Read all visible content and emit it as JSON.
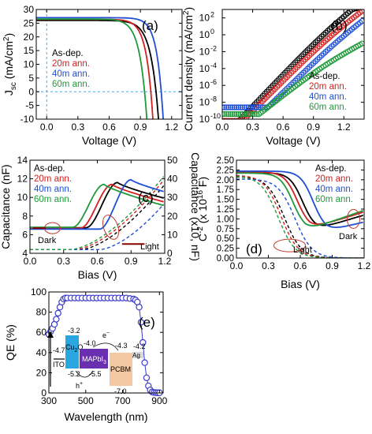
{
  "colors": {
    "asdep": "#000000",
    "ann20": "#d42020",
    "ann40": "#1f4fd6",
    "ann60": "#1f9a3a",
    "qe": "#3b3bcc",
    "ito": "#e8e8e8",
    "cu2o": "#2aa7e0",
    "mapbi": "#6a2fb0",
    "pcbm": "#f3c8a3",
    "ag": "#d8d8d8"
  },
  "legend": [
    "As-dep.",
    "20m ann.",
    "40m ann.",
    "60m ann."
  ],
  "chart_data": [
    {
      "id": "a",
      "type": "line",
      "panel_label": "(a)",
      "xlabel": "Voltage (V)",
      "ylabel": "J",
      "ylabel_sub": "sc",
      "ylabel_tail": " (mA/cm",
      "ylabel_sup": "2",
      "ylabel_end": ")",
      "xlim": [
        -0.1,
        1.3
      ],
      "ylim": [
        -10,
        30
      ],
      "xticks": [
        "0.0",
        "0.3",
        "0.6",
        "0.9",
        "1.2"
      ],
      "xtick_values": [
        0,
        0.3,
        0.6,
        0.9,
        1.2
      ],
      "yticks": [
        "-10",
        "-5",
        "0",
        "5",
        "10",
        "15",
        "20",
        "25",
        "30"
      ],
      "ytick_values": [
        -10,
        -5,
        0,
        5,
        10,
        15,
        20,
        25,
        30
      ],
      "series": [
        {
          "name": "As-dep.",
          "jsc": 26.0,
          "voc": 1.05,
          "n": 2.8
        },
        {
          "name": "20m ann.",
          "jsc": 26.4,
          "voc": 1.0,
          "n": 2.4
        },
        {
          "name": "40m ann.",
          "jsc": 27.0,
          "voc": 1.1,
          "n": 2.3
        },
        {
          "name": "60m ann.",
          "jsc": 26.5,
          "voc": 0.94,
          "n": 2.6
        }
      ]
    },
    {
      "id": "b",
      "type": "scatter",
      "panel_label": "(b)",
      "xlabel": "Voltage (V)",
      "ylabel": "Current density (mA/cm",
      "ylabel_sup": "2",
      "ylabel_end": ")",
      "xlim": [
        0,
        1.4
      ],
      "ylim_log10": [
        -10,
        3
      ],
      "xticks": [
        "0.0",
        "0.3",
        "0.6",
        "0.9",
        "1.2"
      ],
      "xtick_values": [
        0,
        0.3,
        0.6,
        0.9,
        1.2
      ],
      "yticks": [
        "10",
        "10",
        "10",
        "10",
        "10",
        "10",
        "10"
      ],
      "ytick_exponents": [
        "-10",
        "-8",
        "-6",
        "-4",
        "-2",
        "0",
        "2"
      ],
      "ytick_values": [
        -10,
        -8,
        -6,
        -4,
        -2,
        0,
        2
      ],
      "series": [
        {
          "name": "As-dep.",
          "floor": -10.6,
          "v0": 0.18,
          "slope": 12.6,
          "sat": 2.4,
          "satv": 1.03
        },
        {
          "name": "20m ann.",
          "floor": -10.2,
          "v0": 0.22,
          "slope": 12.0,
          "sat": 2.2,
          "satv": 1.05
        },
        {
          "name": "40m ann.",
          "floor": -8.6,
          "v0": 0.33,
          "slope": 11.8,
          "sat": 2.8,
          "satv": 1.18
        },
        {
          "name": "60m ann.",
          "floor": -9.4,
          "v0": 0.3,
          "slope": 9.5,
          "sat": 1.0,
          "satv": 0.98
        }
      ]
    },
    {
      "id": "c",
      "type": "line",
      "panel_label": "(c)",
      "xlabel": "Bias (V)",
      "ylabel": "Capacitance (nF)",
      "ylabel_right": "Capacitance (x10, nF)",
      "xlim": [
        0,
        1.2
      ],
      "ylim": [
        4,
        14
      ],
      "ylim_right": [
        0,
        50
      ],
      "xticks": [
        "0.0",
        "0.3",
        "0.6",
        "0.9",
        "1.2"
      ],
      "xtick_values": [
        0,
        0.3,
        0.6,
        0.9,
        1.2
      ],
      "yticks": [
        "4",
        "6",
        "8",
        "10",
        "12",
        "14"
      ],
      "ytick_values": [
        4,
        6,
        8,
        10,
        12,
        14
      ],
      "yticks_right": [
        "0",
        "10",
        "20",
        "30",
        "40",
        "50"
      ],
      "ytick_values_right": [
        0,
        10,
        20,
        30,
        40,
        50
      ],
      "annotations": [
        "Dark",
        "Light"
      ],
      "dark_series": [
        {
          "name": "As-dep.",
          "base": 6.75,
          "peak_v": 0.78,
          "peak_c": 11.6,
          "end_c": 9.9
        },
        {
          "name": "20m ann.",
          "base": 6.7,
          "peak_v": 0.73,
          "peak_c": 11.4,
          "end_c": 9.5
        },
        {
          "name": "40m ann.",
          "base": 6.6,
          "peak_v": 0.9,
          "peak_c": 11.9,
          "end_c": 10.6
        },
        {
          "name": "60m ann.",
          "base": 6.8,
          "peak_v": 0.66,
          "peak_c": 11.4,
          "end_c": 9.1
        }
      ],
      "light_series": [
        {
          "name": "As-dep.",
          "start": 0.45,
          "end_right": 35
        },
        {
          "name": "20m ann.",
          "start": 0.4,
          "end_right": 38
        },
        {
          "name": "40m ann.",
          "start": 0.62,
          "end_right": 25
        },
        {
          "name": "60m ann.",
          "start": 0.36,
          "end_right": 40
        }
      ]
    },
    {
      "id": "d",
      "type": "line",
      "panel_label": "(d)",
      "xlabel": "Bias (V)",
      "ylabel": "C",
      "ylabel_sup": "-2",
      "ylabel_tail": " (x 10",
      "ylabel_sup2": "16",
      "ylabel_end": " F)",
      "xlim": [
        0,
        1.2
      ],
      "ylim": [
        0,
        2.5
      ],
      "xticks": [
        "0.0",
        "0.3",
        "0.6",
        "0.9",
        "1.2"
      ],
      "xtick_values": [
        0,
        0.3,
        0.6,
        0.9,
        1.2
      ],
      "yticks": [
        "0.00",
        "0.25",
        "0.50",
        "0.75",
        "1.00",
        "1.25",
        "1.50",
        "1.75",
        "2.00",
        "2.25",
        "2.50"
      ],
      "ytick_values": [
        0,
        0.25,
        0.5,
        0.75,
        1.0,
        1.25,
        1.5,
        1.75,
        2.0,
        2.25,
        2.5
      ],
      "annotations": [
        "Dark",
        "Light"
      ],
      "dark_series": [
        {
          "name": "As-dep.",
          "top": 2.18,
          "mid": 0.62,
          "w": 0.06,
          "min": 0.72,
          "end": 1.1
        },
        {
          "name": "20m ann.",
          "top": 2.2,
          "mid": 0.57,
          "w": 0.06,
          "min": 0.75,
          "end": 1.18
        },
        {
          "name": "40m ann.",
          "top": 2.22,
          "mid": 0.72,
          "w": 0.06,
          "min": 0.68,
          "end": 0.92
        },
        {
          "name": "60m ann.",
          "top": 2.17,
          "mid": 0.53,
          "w": 0.06,
          "min": 0.7,
          "end": 1.22
        }
      ],
      "light_series": [
        {
          "name": "As-dep.",
          "top": 2.08,
          "mid": 0.45,
          "w": 0.08
        },
        {
          "name": "20m ann.",
          "top": 2.12,
          "mid": 0.42,
          "w": 0.08
        },
        {
          "name": "40m ann.",
          "top": 2.02,
          "mid": 0.55,
          "w": 0.08
        },
        {
          "name": "60m ann.",
          "top": 2.1,
          "mid": 0.39,
          "w": 0.08
        }
      ]
    },
    {
      "id": "e",
      "type": "line",
      "panel_label": "(e)",
      "xlabel": "Wavelength (nm)",
      "ylabel": "QE (%)",
      "xlim": [
        300,
        920
      ],
      "ylim": [
        0,
        100
      ],
      "xticks": [
        "300",
        "500",
        "700",
        "900"
      ],
      "xtick_values": [
        300,
        500,
        700,
        900
      ],
      "yticks": [
        "0",
        "20",
        "40",
        "60",
        "80",
        "100"
      ],
      "ytick_values": [
        0,
        20,
        40,
        60,
        80,
        100
      ],
      "x": [
        300,
        310,
        320,
        330,
        340,
        350,
        360,
        370,
        380,
        390,
        400,
        420,
        440,
        460,
        480,
        500,
        520,
        540,
        560,
        580,
        600,
        620,
        640,
        660,
        680,
        700,
        720,
        740,
        760,
        770,
        780,
        790,
        800,
        810,
        820,
        830,
        840,
        850,
        860,
        870,
        880,
        890,
        900
      ],
      "y": [
        58,
        61,
        64,
        68,
        73,
        79,
        85,
        90,
        93,
        94,
        94,
        94,
        94,
        94,
        94,
        94,
        94,
        94,
        94,
        94,
        94,
        94,
        94,
        94,
        94,
        94,
        94,
        93.5,
        93,
        92,
        90,
        85,
        70,
        50,
        30,
        15,
        7,
        3,
        1,
        0.5,
        0.3,
        0.2,
        0.2
      ],
      "inset": {
        "layers": [
          {
            "name": "ITO",
            "level": "-4.7"
          },
          {
            "name": "Cu",
            "sub": "2",
            "tail": "O",
            "top": "-3.2",
            "bottom": "-5.2"
          },
          {
            "name": "MAPbI",
            "sub": "3",
            "top": "-4.0",
            "bottom": "-5.5"
          },
          {
            "name": "PCBM",
            "top": "-4.3",
            "bottom": "-7.0"
          },
          {
            "name": "Ag",
            "level": "-4.2"
          }
        ],
        "carriers": [
          "e",
          "h"
        ],
        "carrier_sign_e": "−",
        "carrier_sign_h": "+"
      }
    }
  ]
}
